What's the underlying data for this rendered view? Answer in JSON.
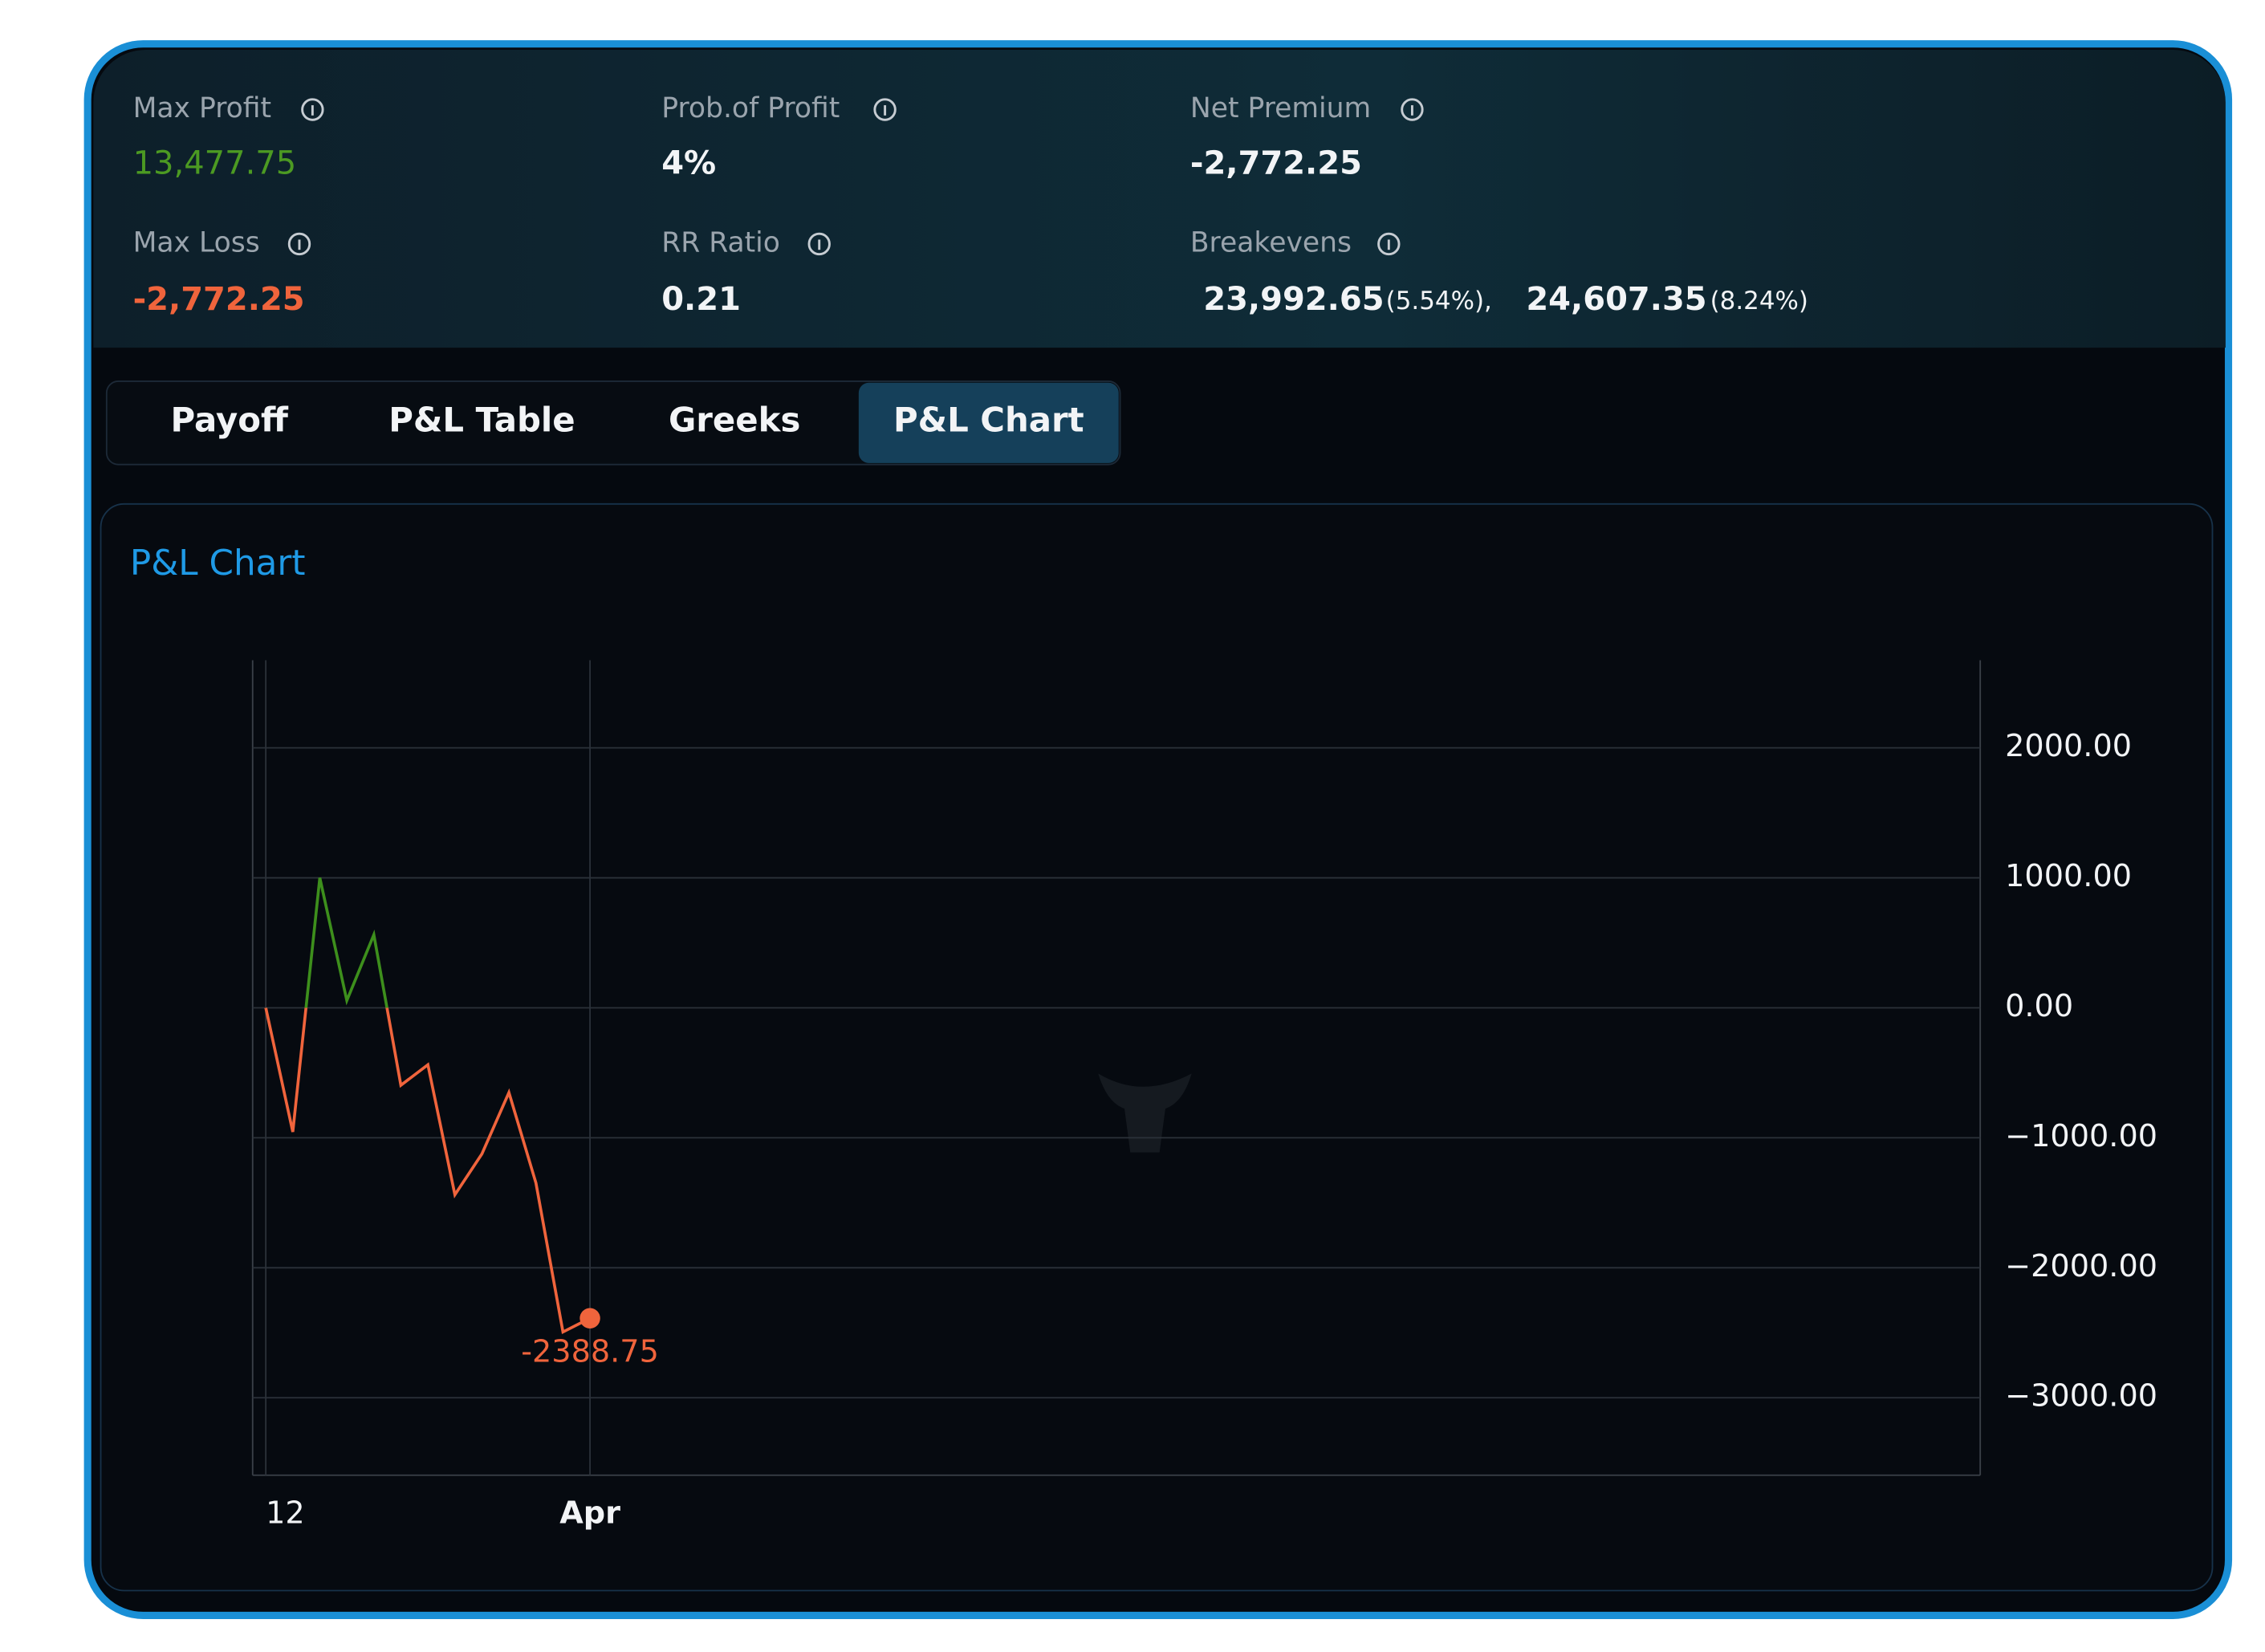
{
  "metrics": [
    {
      "label": "Max Profit",
      "value": "13,477.75"
    },
    {
      "label": "Prob.of Profit",
      "value": "4%"
    },
    {
      "label": "Net Premium",
      "value": "-2,772.25"
    },
    {
      "label": "Max Loss",
      "value": "-2,772.25"
    },
    {
      "label": "RR Ratio",
      "value": "0.21"
    }
  ],
  "breakevens": {
    "label": "Breakevens",
    "items": [
      {
        "value": "23,992.65",
        "pct": "(5.54%),"
      },
      {
        "value": "24,607.35",
        "pct": "(8.24%)"
      }
    ]
  },
  "tabs": [
    "Payoff",
    "P&L Table",
    "Greeks",
    "P&L Chart"
  ],
  "active_tab": 3,
  "panel_title": "P&L Chart",
  "chart_data": {
    "type": "line",
    "categories": [
      "12",
      null,
      null,
      null,
      null,
      null,
      null,
      null,
      null,
      null,
      null,
      null,
      "Apr"
    ],
    "series": [
      {
        "name": "P&L",
        "color": "#f0643c",
        "positive_color": "#3d8f1c",
        "values": [
          0,
          -955,
          1000,
          56,
          562,
          -596,
          -438,
          -1438,
          -1124,
          -652,
          -1348,
          -2494,
          -2388.75
        ]
      }
    ],
    "ylim": [
      -3596,
      2674
    ],
    "yticks": [
      {
        "value": -3000,
        "label": "−3000.00"
      },
      {
        "value": -2000,
        "label": "−2000.00"
      },
      {
        "value": -1000,
        "label": "−1000.00"
      },
      {
        "value": 0,
        "label": "0.00"
      },
      {
        "value": 1000,
        "label": "1000.00"
      },
      {
        "value": 2000,
        "label": "2000.00"
      }
    ],
    "grid": true
  }
}
